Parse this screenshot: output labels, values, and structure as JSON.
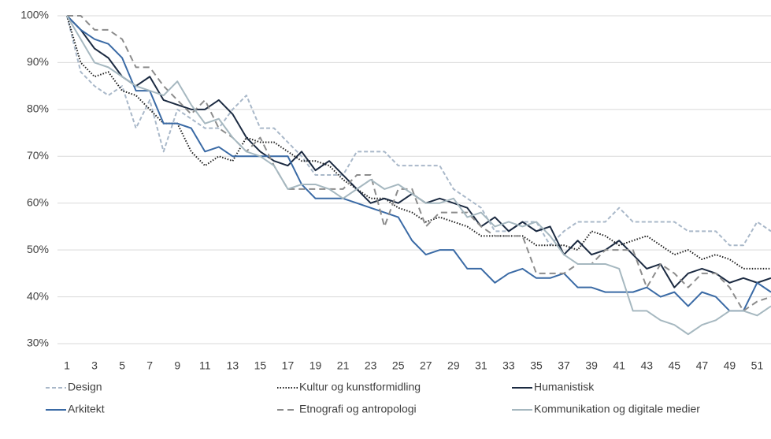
{
  "chart_data": {
    "type": "line",
    "x": [
      1,
      2,
      3,
      4,
      5,
      6,
      7,
      8,
      9,
      10,
      11,
      12,
      13,
      14,
      15,
      16,
      17,
      18,
      19,
      20,
      21,
      22,
      23,
      24,
      25,
      26,
      27,
      28,
      29,
      30,
      31,
      32,
      33,
      34,
      35,
      36,
      37,
      38,
      39,
      40,
      41,
      42,
      43,
      44,
      45,
      46,
      47,
      48,
      49,
      50,
      51,
      52
    ],
    "xlim": [
      1,
      52
    ],
    "xticks": [
      1,
      3,
      5,
      7,
      9,
      11,
      13,
      15,
      17,
      19,
      21,
      23,
      25,
      27,
      29,
      31,
      33,
      35,
      37,
      39,
      41,
      43,
      45,
      47,
      49,
      51
    ],
    "ylim": [
      30,
      100
    ],
    "yticks": [
      {
        "value": 30,
        "label": "30%"
      },
      {
        "value": 40,
        "label": "40%"
      },
      {
        "value": 50,
        "label": "50%"
      },
      {
        "value": 60,
        "label": "60%"
      },
      {
        "value": 70,
        "label": "70%"
      },
      {
        "value": 80,
        "label": "80%"
      },
      {
        "value": 90,
        "label": "90%"
      },
      {
        "value": 100,
        "label": "100%"
      }
    ],
    "grid": true,
    "legend": "bottom",
    "series": [
      {
        "name": "Design",
        "color": "#a9b8c9",
        "style": "dashed",
        "values": [
          100,
          88,
          85,
          83,
          85,
          76,
          82,
          71,
          80,
          78,
          76,
          76,
          80,
          83,
          76,
          76,
          73,
          70,
          66,
          66,
          66,
          71,
          71,
          71,
          68,
          68,
          68,
          68,
          63,
          61,
          59,
          54,
          54,
          56,
          56,
          51,
          54,
          56,
          56,
          56,
          59,
          56,
          56,
          56,
          56,
          54,
          54,
          54,
          51,
          51,
          56,
          54
        ]
      },
      {
        "name": "Kultur og kunstformidling",
        "color": "#1f1f1f",
        "style": "dotted",
        "values": [
          100,
          90,
          87,
          88,
          84,
          83,
          80,
          77,
          77,
          71,
          68,
          70,
          69,
          74,
          73,
          73,
          71,
          69,
          69,
          68,
          65,
          63,
          61,
          61,
          59,
          58,
          56,
          57,
          56,
          55,
          53,
          53,
          53,
          53,
          51,
          51,
          51,
          50,
          54,
          53,
          51,
          52,
          53,
          51,
          49,
          50,
          48,
          49,
          48,
          46,
          46,
          46
        ]
      },
      {
        "name": "Humanistisk",
        "color": "#1b2a41",
        "style": "solid",
        "values": [
          100,
          97,
          93,
          91,
          87,
          85,
          87,
          82,
          81,
          80,
          80,
          82,
          79,
          74,
          71,
          69,
          68,
          71,
          67,
          69,
          66,
          63,
          60,
          61,
          60,
          62,
          60,
          61,
          60,
          59,
          55,
          57,
          54,
          56,
          54,
          55,
          49,
          52,
          49,
          50,
          52,
          49,
          46,
          47,
          42,
          45,
          46,
          45,
          43,
          44,
          43,
          44
        ]
      },
      {
        "name": "Arkitekt",
        "color": "#3a6aa5",
        "style": "solid",
        "values": [
          100,
          97,
          95,
          94,
          91,
          84,
          84,
          77,
          77,
          76,
          71,
          72,
          70,
          70,
          70,
          70,
          70,
          64,
          61,
          61,
          61,
          60,
          59,
          58,
          57,
          52,
          49,
          50,
          50,
          46,
          46,
          43,
          45,
          46,
          44,
          44,
          45,
          42,
          42,
          41,
          41,
          41,
          42,
          40,
          41,
          38,
          41,
          40,
          37,
          37,
          43,
          41
        ]
      },
      {
        "name": "Etnografi og antropologi",
        "color": "#8c8c8c",
        "style": "longdash",
        "values": [
          100,
          100,
          97,
          97,
          95,
          89,
          89,
          85,
          82,
          79,
          82,
          76,
          74,
          71,
          74,
          68,
          63,
          63,
          63,
          63,
          63,
          66,
          66,
          55,
          63,
          63,
          55,
          58,
          58,
          58,
          55,
          53,
          53,
          53,
          45,
          45,
          45,
          47,
          47,
          50,
          50,
          50,
          42,
          47,
          45,
          42,
          45,
          45,
          42,
          37,
          39,
          40
        ]
      },
      {
        "name": "Kommunikation og digitale medier",
        "color": "#a6b8c0",
        "style": "solid",
        "values": [
          100,
          95,
          90,
          89,
          87,
          85,
          84,
          83,
          86,
          81,
          77,
          78,
          74,
          71,
          70,
          68,
          63,
          64,
          64,
          63,
          61,
          63,
          65,
          63,
          64,
          62,
          60,
          60,
          61,
          57,
          58,
          55,
          56,
          55,
          56,
          53,
          49,
          47,
          47,
          47,
          46,
          37,
          37,
          35,
          34,
          32,
          34,
          35,
          37,
          37,
          36,
          38
        ]
      }
    ]
  }
}
